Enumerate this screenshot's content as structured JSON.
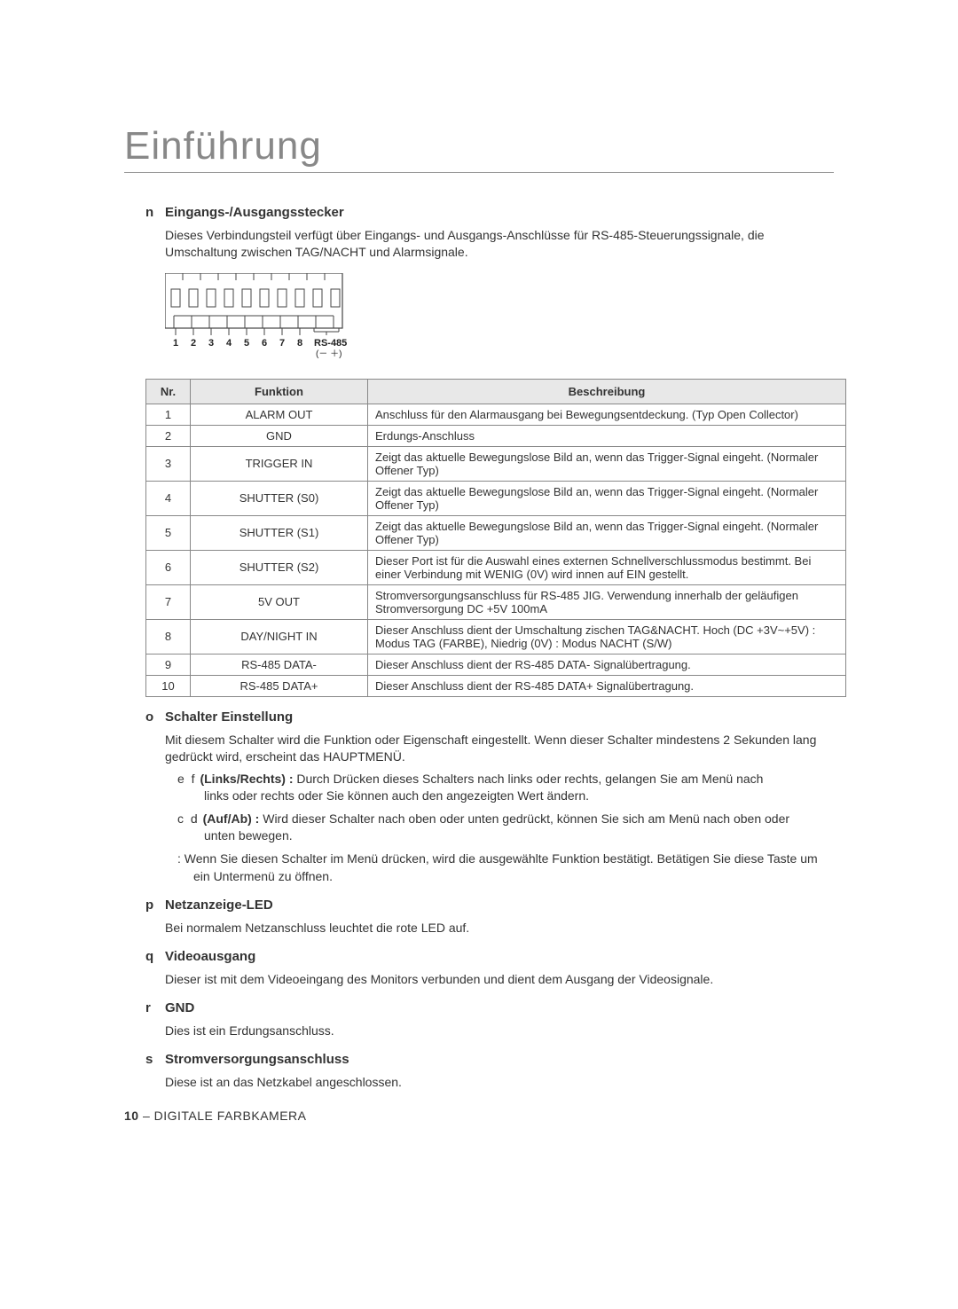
{
  "page": {
    "title": "Einführung",
    "footer_page": "10",
    "footer_text": " – DIGITALE FARBKAMERA"
  },
  "sections": {
    "io_connector": {
      "bullet": "n",
      "heading": "Eingangs-/Ausgangsstecker",
      "text": "Dieses Verbindungsteil verfügt über Eingangs- und Ausgangs-Anschlüsse für RS-485-Steuerungssignale, die Umschaltung zwischen TAG/NACHT und Alarmsignale."
    },
    "switch": {
      "bullet": "o",
      "heading": "Schalter Einstellung",
      "text": "Mit diesem Schalter wird die Funktion oder Eigenschaft eingestellt. Wenn dieser Schalter mindestens 2 Sekunden lang gedrückt wird, erscheint das HAUPTMENÜ.",
      "lr_sym": "e f",
      "lr_label": "(Links/Rechts) :",
      "lr_text": " Durch Drücken dieses Schalters nach links oder rechts, gelangen Sie am Menü nach",
      "lr_text2": "links oder rechts oder Sie können auch den angezeigten Wert ändern.",
      "ud_sym": "c d",
      "ud_label": "(Auf/Ab) :",
      "ud_text": " Wird dieser Schalter nach oben oder unten gedrückt, können Sie sich am Menü nach oben oder",
      "ud_text2": "unten bewegen.",
      "enter_text": ": Wenn Sie diesen Schalter im Menü drücken, wird die ausgewählte Funktion bestätigt. Betätigen Sie diese Taste um ein Untermenü zu öffnen."
    },
    "led": {
      "bullet": "p",
      "heading": "Netzanzeige-LED",
      "text": "Bei normalem Netzanschluss leuchtet die rote LED auf."
    },
    "video": {
      "bullet": "q",
      "heading": "Videoausgang",
      "text": "Dieser ist mit dem Videoeingang des Monitors verbunden und dient dem Ausgang der Videosignale."
    },
    "gnd": {
      "bullet": "r",
      "heading": "GND",
      "text": "Dies ist ein Erdungsanschluss."
    },
    "power": {
      "bullet": "s",
      "heading": "Stromversorgungsanschluss",
      "text": "Diese ist an das Netzkabel angeschlossen."
    }
  },
  "diagram": {
    "pin_count": 10,
    "labels": [
      "1",
      "2",
      "3",
      "4",
      "5",
      "6",
      "7",
      "8"
    ],
    "rs485_label": "RS-485",
    "rs485_sub": "(－ ＋)"
  },
  "table": {
    "headers": {
      "nr": "Nr.",
      "func": "Funktion",
      "desc": "Beschreibung"
    },
    "rows": [
      {
        "nr": "1",
        "func": "ALARM OUT",
        "desc": "Anschluss für den Alarmausgang bei Bewegungsentdeckung. (Typ Open Collector)"
      },
      {
        "nr": "2",
        "func": "GND",
        "desc": "Erdungs-Anschluss"
      },
      {
        "nr": "3",
        "func": "TRIGGER IN",
        "desc": "Zeigt das aktuelle Bewegungslose Bild an, wenn das Trigger-Signal eingeht. (Normaler Offener Typ)"
      },
      {
        "nr": "4",
        "func": "SHUTTER (S0)",
        "desc": "Zeigt das aktuelle Bewegungslose Bild an, wenn das Trigger-Signal eingeht. (Normaler Offener Typ)"
      },
      {
        "nr": "5",
        "func": "SHUTTER (S1)",
        "desc": "Zeigt das aktuelle Bewegungslose Bild an, wenn das Trigger-Signal eingeht. (Normaler Offener Typ)"
      },
      {
        "nr": "6",
        "func": "SHUTTER (S2)",
        "desc": "Dieser Port ist für die Auswahl eines externen Schnellverschlussmodus bestimmt. Bei einer Verbindung mit WENIG (0V) wird innen auf EIN gestellt."
      },
      {
        "nr": "7",
        "func": "5V OUT",
        "desc": "Stromversorgungsanschluss für RS-485 JIG. Verwendung innerhalb der geläufigen Stromversorgung DC +5V 100mA"
      },
      {
        "nr": "8",
        "func": "DAY/NIGHT IN",
        "desc": "Dieser Anschluss dient der Umschaltung zischen TAG&NACHT. Hoch (DC +3V~+5V) : Modus TAG (FARBE), Niedrig (0V) : Modus NACHT (S/W)"
      },
      {
        "nr": "9",
        "func": "RS-485 DATA-",
        "desc": "Dieser Anschluss dient der RS-485 DATA- Signalübertragung."
      },
      {
        "nr": "10",
        "func": "RS-485 DATA+",
        "desc": "Dieser Anschluss dient der RS-485 DATA+ Signalübertragung."
      }
    ]
  },
  "colors": {
    "bg": "#ffffff",
    "title": "#888888",
    "border": "#888888",
    "th_bg": "#e8e8e8",
    "text": "#333333"
  }
}
